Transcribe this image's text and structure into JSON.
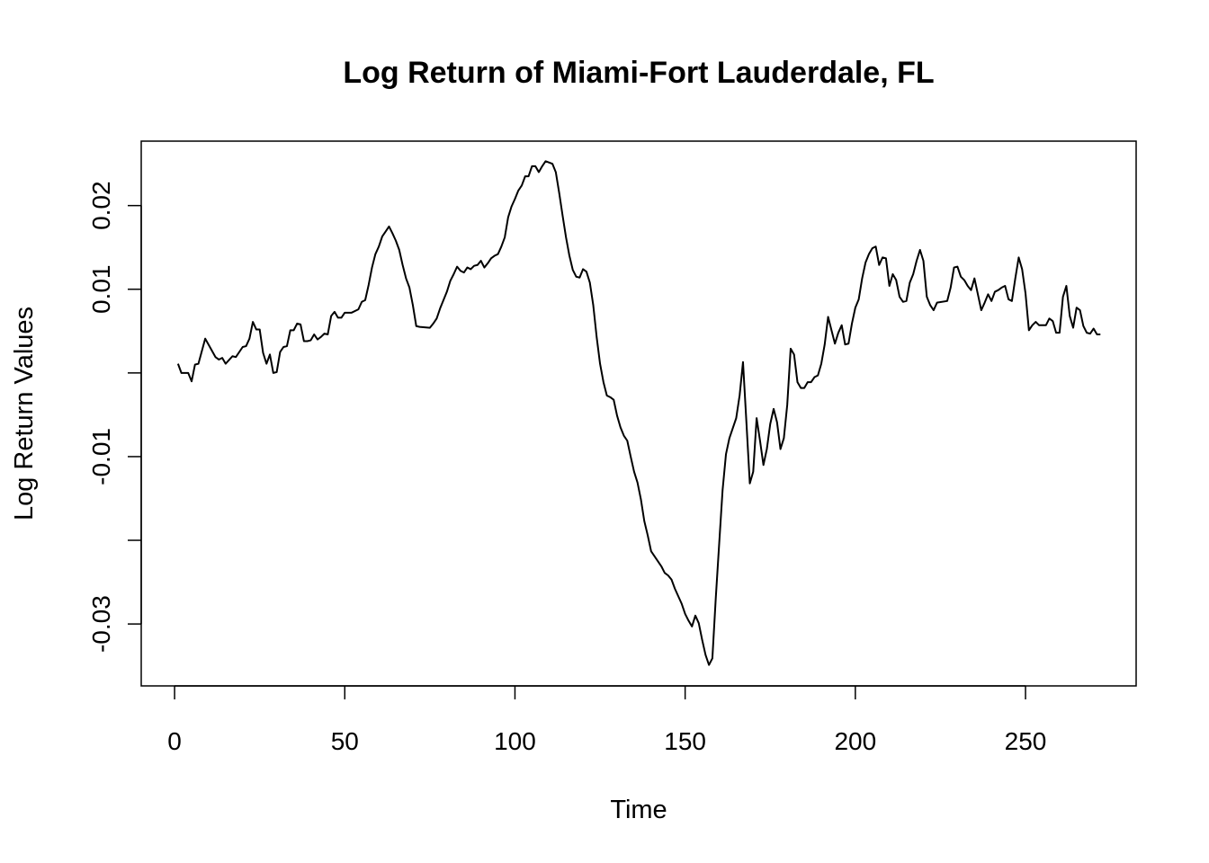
{
  "chart_data": {
    "type": "line",
    "title": "Log Return of Miami-Fort Lauderdale, FL",
    "x_label": "Time",
    "y_label": "Log Return Values",
    "color": "#000000",
    "x": [
      1,
      2,
      4,
      5,
      6,
      7,
      9,
      12,
      13,
      14,
      15,
      17,
      18,
      20,
      21,
      22,
      23,
      24,
      25,
      26,
      27,
      28,
      29,
      30,
      31,
      32,
      33,
      34,
      35,
      36,
      37,
      38,
      39,
      40,
      41,
      42,
      43,
      44,
      45,
      46,
      47,
      48,
      49,
      50,
      52,
      54,
      55,
      56,
      57,
      58,
      59,
      60,
      61,
      62,
      63,
      64,
      65,
      66,
      67,
      68,
      69,
      70,
      71,
      72,
      75,
      76,
      77,
      78,
      80,
      81,
      82,
      83,
      84,
      85,
      86,
      87,
      88,
      89,
      90,
      91,
      92,
      93,
      94,
      95,
      96,
      97,
      98,
      99,
      100,
      101,
      102,
      103,
      104,
      105,
      106,
      107,
      108,
      109,
      111,
      112,
      113,
      114,
      115,
      116,
      117,
      118,
      119,
      120,
      121,
      122,
      123,
      124,
      125,
      126,
      127,
      128,
      129,
      130,
      131,
      132,
      133,
      134,
      135,
      136,
      137,
      138,
      139,
      140,
      143,
      144,
      145,
      146,
      147,
      148,
      149,
      150,
      151,
      152,
      153,
      154,
      155,
      156,
      157,
      158,
      159,
      160,
      161,
      162,
      163,
      165,
      166,
      167,
      168,
      169,
      170,
      171,
      172,
      173,
      174,
      175,
      176,
      177,
      178,
      179,
      180,
      181,
      182,
      183,
      184,
      185,
      186,
      187,
      188,
      189,
      190,
      191,
      192,
      193,
      194,
      195,
      196,
      197,
      198,
      199,
      200,
      201,
      202,
      203,
      204,
      205,
      206,
      207,
      208,
      209,
      210,
      211,
      212,
      213,
      214,
      215,
      216,
      217,
      218,
      219,
      220,
      221,
      222,
      223,
      224,
      227,
      228,
      229,
      230,
      231,
      232,
      233,
      234,
      235,
      236,
      237,
      238,
      239,
      240,
      241,
      242,
      243,
      244,
      245,
      246,
      247,
      248,
      249,
      250,
      251,
      252,
      253,
      254,
      255,
      256,
      257,
      258,
      259,
      260,
      261,
      262,
      263,
      264,
      265,
      266,
      267,
      268,
      269,
      270,
      271,
      272
    ],
    "values": [
      0.0011,
      0,
      0,
      -0.001,
      0.001,
      0.0011,
      0.0041,
      0.0019,
      0.0016,
      0.0018,
      0.0011,
      0.002,
      0.0019,
      0.0031,
      0.0032,
      0.0041,
      0.0061,
      0.0052,
      0.0052,
      0.0024,
      0.0011,
      0.0022,
      0,
      0.0001,
      0.0025,
      0.0031,
      0.0032,
      0.0051,
      0.0051,
      0.0059,
      0.0058,
      0.0038,
      0.0038,
      0.0039,
      0.0046,
      0.004,
      0.0043,
      0.0047,
      0.0046,
      0.0068,
      0.0073,
      0.0066,
      0.0066,
      0.0072,
      0.0072,
      0.0076,
      0.0085,
      0.0087,
      0.0105,
      0.0126,
      0.0142,
      0.0151,
      0.0163,
      0.0169,
      0.0175,
      0.0167,
      0.0158,
      0.0147,
      0.0129,
      0.0113,
      0.0102,
      0.0081,
      0.0056,
      0.0055,
      0.0054,
      0.0059,
      0.0065,
      0.0077,
      0.0097,
      0.011,
      0.0118,
      0.0127,
      0.0122,
      0.012,
      0.0126,
      0.0124,
      0.0128,
      0.0129,
      0.0134,
      0.0126,
      0.0131,
      0.0137,
      0.014,
      0.0142,
      0.0151,
      0.0162,
      0.0186,
      0.0199,
      0.0208,
      0.0218,
      0.0224,
      0.0235,
      0.0235,
      0.0247,
      0.0247,
      0.024,
      0.0247,
      0.0253,
      0.025,
      0.024,
      0.0215,
      0.0188,
      0.0162,
      0.014,
      0.0123,
      0.0115,
      0.0114,
      0.0124,
      0.0121,
      0.0108,
      0.0081,
      0.0043,
      0.0011,
      -0.0011,
      -0.0027,
      -0.0029,
      -0.0032,
      -0.0051,
      -0.0065,
      -0.0075,
      -0.0081,
      -0.01,
      -0.0118,
      -0.0131,
      -0.0151,
      -0.0177,
      -0.0194,
      -0.0213,
      -0.0231,
      -0.0239,
      -0.0242,
      -0.0247,
      -0.0258,
      -0.0267,
      -0.0276,
      -0.0288,
      -0.0296,
      -0.0303,
      -0.029,
      -0.0299,
      -0.0319,
      -0.0337,
      -0.0349,
      -0.0341,
      -0.0269,
      -0.0204,
      -0.014,
      -0.0097,
      -0.0078,
      -0.0054,
      -0.0027,
      0.0013,
      -0.0059,
      -0.0132,
      -0.0118,
      -0.0054,
      -0.0081,
      -0.011,
      -0.0091,
      -0.0061,
      -0.0043,
      -0.0059,
      -0.0091,
      -0.0078,
      -0.0038,
      0.0029,
      0.0022,
      -0.0011,
      -0.0018,
      -0.0018,
      -0.0011,
      -0.0011,
      -0.0005,
      -0.0003,
      0.0011,
      0.0034,
      0.0067,
      0.0051,
      0.0035,
      0.0048,
      0.0057,
      0.0034,
      0.0035,
      0.0059,
      0.0078,
      0.0088,
      0.0113,
      0.0132,
      0.0142,
      0.0149,
      0.0151,
      0.0129,
      0.0138,
      0.0137,
      0.0104,
      0.0118,
      0.0111,
      0.0091,
      0.0085,
      0.0086,
      0.0108,
      0.0118,
      0.0134,
      0.0147,
      0.0134,
      0.0091,
      0.0081,
      0.0075,
      0.0084,
      0.0086,
      0.0102,
      0.0126,
      0.0127,
      0.0115,
      0.0111,
      0.0104,
      0.0099,
      0.0113,
      0.0094,
      0.0075,
      0.0084,
      0.0094,
      0.0086,
      0.0097,
      0.0099,
      0.0102,
      0.0104,
      0.0088,
      0.0086,
      0.0113,
      0.0138,
      0.0124,
      0.0095,
      0.0051,
      0.0057,
      0.0061,
      0.0057,
      0.0057,
      0.0057,
      0.0065,
      0.0062,
      0.0048,
      0.0048,
      0.0091,
      0.0104,
      0.0068,
      0.0054,
      0.0078,
      0.0075,
      0.0056,
      0.0048,
      0.0047,
      0.0053,
      0.0046,
      0.0046
    ],
    "xlim": [
      -9.8,
      282.5
    ],
    "ylim": [
      -0.0374,
      0.0277
    ],
    "xticks": [
      0,
      50,
      100,
      150,
      200,
      250
    ],
    "yticks": [
      -0.03,
      {
        "value": -0.02,
        "label": null
      },
      -0.01,
      {
        "value": 0,
        "label": null
      },
      0.01,
      0.02
    ]
  }
}
